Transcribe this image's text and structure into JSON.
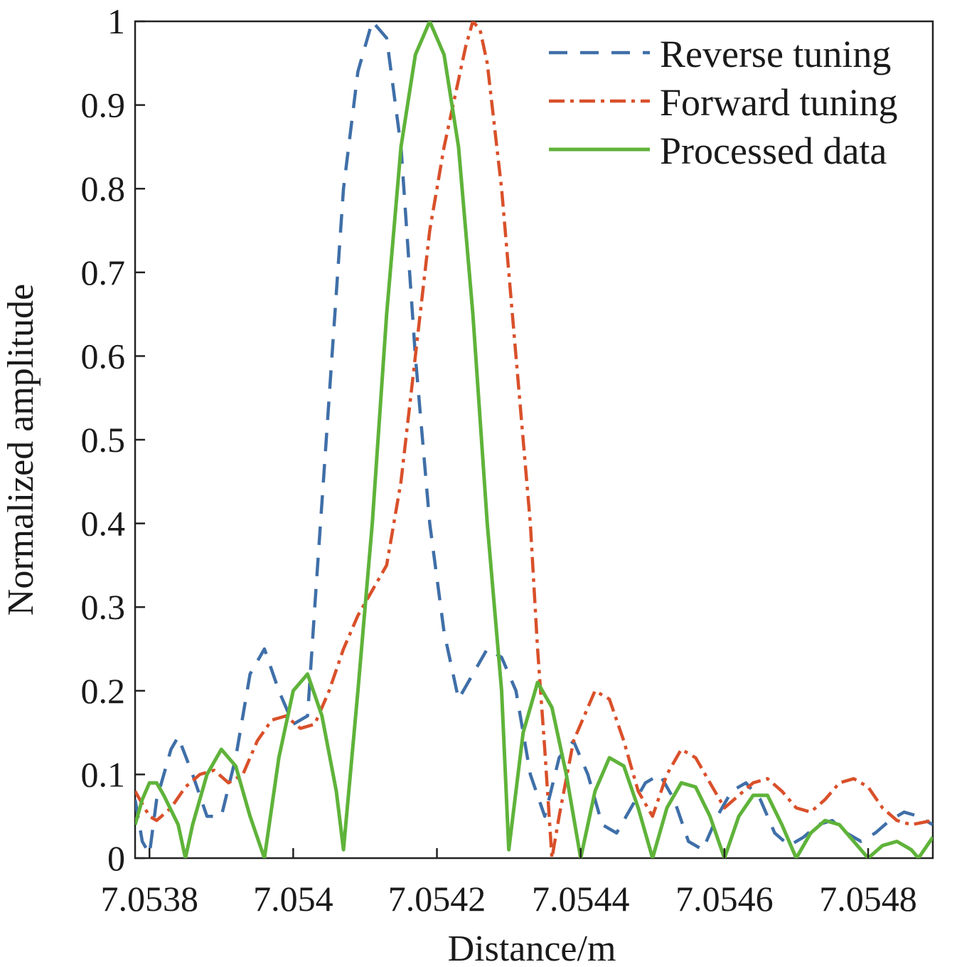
{
  "chart_data": {
    "type": "line",
    "title": "",
    "xlabel": "Distance/m",
    "ylabel": "Normalized amplitude",
    "xlim": [
      7.05378,
      7.05489
    ],
    "ylim": [
      0,
      1
    ],
    "xticks": [
      7.0538,
      7.054,
      7.0542,
      7.0544,
      7.0546,
      7.0548
    ],
    "xtick_labels": [
      "7.0538",
      "7.054",
      "7.0542",
      "7.0544",
      "7.0546",
      "7.0548"
    ],
    "yticks": [
      0,
      0.1,
      0.2,
      0.3,
      0.4,
      0.5,
      0.6,
      0.7,
      0.8,
      0.9,
      1
    ],
    "ytick_labels": [
      "0",
      "0.1",
      "0.2",
      "0.3",
      "0.4",
      "0.5",
      "0.6",
      "0.7",
      "0.8",
      "0.9",
      "1"
    ],
    "grid": false,
    "legend_position": "top-right",
    "series": [
      {
        "name": "Reverse tuning",
        "color": "#3f6fa8",
        "style": "dashed",
        "points": [
          [
            7.05378,
            0.07
          ],
          [
            7.05379,
            0.02
          ],
          [
            7.0538,
            0.005
          ],
          [
            7.05381,
            0.07
          ],
          [
            7.05383,
            0.13
          ],
          [
            7.05384,
            0.145
          ],
          [
            7.05386,
            0.1
          ],
          [
            7.05388,
            0.05
          ],
          [
            7.0539,
            0.05
          ],
          [
            7.05392,
            0.12
          ],
          [
            7.05394,
            0.22
          ],
          [
            7.05396,
            0.25
          ],
          [
            7.05398,
            0.2
          ],
          [
            7.054,
            0.16
          ],
          [
            7.05402,
            0.17
          ],
          [
            7.05403,
            0.3
          ],
          [
            7.05405,
            0.55
          ],
          [
            7.05407,
            0.8
          ],
          [
            7.05409,
            0.94
          ],
          [
            7.05411,
            1.0
          ],
          [
            7.05413,
            0.98
          ],
          [
            7.05415,
            0.85
          ],
          [
            7.05417,
            0.6
          ],
          [
            7.05419,
            0.4
          ],
          [
            7.05421,
            0.27
          ],
          [
            7.05423,
            0.19
          ],
          [
            7.05425,
            0.22
          ],
          [
            7.05427,
            0.25
          ],
          [
            7.05429,
            0.24
          ],
          [
            7.05431,
            0.2
          ],
          [
            7.05433,
            0.1
          ],
          [
            7.05435,
            0.05
          ],
          [
            7.05437,
            0.12
          ],
          [
            7.05439,
            0.14
          ],
          [
            7.05441,
            0.1
          ],
          [
            7.05443,
            0.04
          ],
          [
            7.05445,
            0.03
          ],
          [
            7.05447,
            0.06
          ],
          [
            7.05449,
            0.09
          ],
          [
            7.05451,
            0.1
          ],
          [
            7.05453,
            0.07
          ],
          [
            7.05455,
            0.02
          ],
          [
            7.05457,
            0.01
          ],
          [
            7.05459,
            0.05
          ],
          [
            7.05461,
            0.08
          ],
          [
            7.05463,
            0.09
          ],
          [
            7.05465,
            0.07
          ],
          [
            7.05467,
            0.03
          ],
          [
            7.05469,
            0.015
          ],
          [
            7.05471,
            0.025
          ],
          [
            7.05473,
            0.04
          ],
          [
            7.05475,
            0.045
          ],
          [
            7.05477,
            0.03
          ],
          [
            7.05479,
            0.02
          ],
          [
            7.05481,
            0.03
          ],
          [
            7.05483,
            0.045
          ],
          [
            7.05485,
            0.055
          ],
          [
            7.05487,
            0.05
          ],
          [
            7.05489,
            0.04
          ]
        ]
      },
      {
        "name": "Forward tuning",
        "color": "#d9502a",
        "style": "dashdot",
        "points": [
          [
            7.05378,
            0.08
          ],
          [
            7.05379,
            0.065
          ],
          [
            7.0538,
            0.05
          ],
          [
            7.05381,
            0.045
          ],
          [
            7.05383,
            0.06
          ],
          [
            7.05385,
            0.085
          ],
          [
            7.05387,
            0.1
          ],
          [
            7.05389,
            0.105
          ],
          [
            7.05391,
            0.09
          ],
          [
            7.05393,
            0.1
          ],
          [
            7.05395,
            0.14
          ],
          [
            7.05397,
            0.165
          ],
          [
            7.05399,
            0.17
          ],
          [
            7.05401,
            0.155
          ],
          [
            7.05403,
            0.16
          ],
          [
            7.05405,
            0.2
          ],
          [
            7.05407,
            0.25
          ],
          [
            7.05409,
            0.29
          ],
          [
            7.05411,
            0.32
          ],
          [
            7.05413,
            0.35
          ],
          [
            7.05415,
            0.45
          ],
          [
            7.05417,
            0.6
          ],
          [
            7.05419,
            0.75
          ],
          [
            7.05421,
            0.85
          ],
          [
            7.05423,
            0.93
          ],
          [
            7.05424,
            0.97
          ],
          [
            7.05425,
            1.0
          ],
          [
            7.05426,
            0.99
          ],
          [
            7.05427,
            0.95
          ],
          [
            7.05429,
            0.8
          ],
          [
            7.05431,
            0.6
          ],
          [
            7.05433,
            0.4
          ],
          [
            7.05434,
            0.25
          ],
          [
            7.05435,
            0.13
          ],
          [
            7.05436,
            0.0
          ],
          [
            7.05437,
            0.05
          ],
          [
            7.05439,
            0.14
          ],
          [
            7.05441,
            0.18
          ],
          [
            7.05442,
            0.2
          ],
          [
            7.05444,
            0.19
          ],
          [
            7.05446,
            0.14
          ],
          [
            7.05448,
            0.08
          ],
          [
            7.0545,
            0.05
          ],
          [
            7.05452,
            0.1
          ],
          [
            7.05454,
            0.13
          ],
          [
            7.05456,
            0.12
          ],
          [
            7.05458,
            0.09
          ],
          [
            7.0546,
            0.06
          ],
          [
            7.05462,
            0.075
          ],
          [
            7.05464,
            0.09
          ],
          [
            7.05466,
            0.095
          ],
          [
            7.05468,
            0.08
          ],
          [
            7.0547,
            0.06
          ],
          [
            7.05472,
            0.055
          ],
          [
            7.05474,
            0.07
          ],
          [
            7.05476,
            0.09
          ],
          [
            7.05478,
            0.095
          ],
          [
            7.0548,
            0.085
          ],
          [
            7.05482,
            0.06
          ],
          [
            7.05484,
            0.045
          ],
          [
            7.05486,
            0.04
          ],
          [
            7.05489,
            0.045
          ]
        ]
      },
      {
        "name": "Processed data",
        "color": "#5fb33a",
        "style": "solid",
        "points": [
          [
            7.05378,
            0.04
          ],
          [
            7.05379,
            0.07
          ],
          [
            7.0538,
            0.09
          ],
          [
            7.05381,
            0.09
          ],
          [
            7.05382,
            0.075
          ],
          [
            7.05384,
            0.04
          ],
          [
            7.05385,
            0.0
          ],
          [
            7.05386,
            0.04
          ],
          [
            7.05388,
            0.1
          ],
          [
            7.0539,
            0.13
          ],
          [
            7.05392,
            0.11
          ],
          [
            7.05394,
            0.05
          ],
          [
            7.05396,
            0.0
          ],
          [
            7.05398,
            0.12
          ],
          [
            7.054,
            0.2
          ],
          [
            7.05402,
            0.22
          ],
          [
            7.05404,
            0.17
          ],
          [
            7.05406,
            0.08
          ],
          [
            7.05407,
            0.01
          ],
          [
            7.05409,
            0.2
          ],
          [
            7.05411,
            0.4
          ],
          [
            7.05413,
            0.65
          ],
          [
            7.05415,
            0.85
          ],
          [
            7.05417,
            0.96
          ],
          [
            7.05419,
            1.0
          ],
          [
            7.05421,
            0.96
          ],
          [
            7.05423,
            0.85
          ],
          [
            7.05425,
            0.65
          ],
          [
            7.05427,
            0.4
          ],
          [
            7.05429,
            0.2
          ],
          [
            7.0543,
            0.01
          ],
          [
            7.05432,
            0.15
          ],
          [
            7.05434,
            0.21
          ],
          [
            7.05436,
            0.18
          ],
          [
            7.05438,
            0.1
          ],
          [
            7.0544,
            0.0
          ],
          [
            7.05442,
            0.08
          ],
          [
            7.05444,
            0.12
          ],
          [
            7.05446,
            0.11
          ],
          [
            7.05448,
            0.06
          ],
          [
            7.0545,
            0.0
          ],
          [
            7.05452,
            0.06
          ],
          [
            7.05454,
            0.09
          ],
          [
            7.05456,
            0.085
          ],
          [
            7.05458,
            0.05
          ],
          [
            7.0546,
            0.0
          ],
          [
            7.05462,
            0.05
          ],
          [
            7.05464,
            0.075
          ],
          [
            7.05466,
            0.075
          ],
          [
            7.05468,
            0.04
          ],
          [
            7.0547,
            0.0
          ],
          [
            7.05472,
            0.03
          ],
          [
            7.05474,
            0.045
          ],
          [
            7.05476,
            0.04
          ],
          [
            7.05478,
            0.02
          ],
          [
            7.0548,
            0.0
          ],
          [
            7.05482,
            0.015
          ],
          [
            7.05484,
            0.02
          ],
          [
            7.05486,
            0.01
          ],
          [
            7.05487,
            0.0
          ],
          [
            7.05489,
            0.025
          ]
        ]
      }
    ]
  }
}
